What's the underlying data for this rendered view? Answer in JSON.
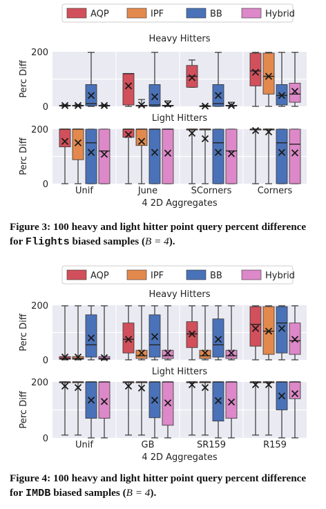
{
  "figures": [
    {
      "caption_prefix": "Figure 3: 100 heavy and light hitter point query percent difference for ",
      "caption_dataset": "Flights",
      "caption_suffix": " biased samples (",
      "caption_param": "B = 4",
      "caption_end": ").",
      "legend": [
        "AQP",
        "IPF",
        "BB",
        "Hybrid"
      ],
      "panel_titles": [
        "Heavy Hitters",
        "Light Hitters"
      ],
      "ylabel": "Perc Diff",
      "xlabel": "4 2D Aggregates",
      "categories": [
        "Unif",
        "June",
        "SCorners",
        "Corners"
      ]
    },
    {
      "caption_prefix": "Figure 4: 100 heavy and light hitter point query percent difference for ",
      "caption_dataset": "IMDB",
      "caption_suffix": " biased samples (",
      "caption_param": "B = 4",
      "caption_end": ").",
      "legend": [
        "AQP",
        "IPF",
        "BB",
        "Hybrid"
      ],
      "panel_titles": [
        "Heavy Hitters",
        "Light Hitters"
      ],
      "ylabel": "Perc Diff",
      "xlabel": "4 2D Aggregates",
      "categories": [
        "Unif",
        "GB",
        "SR159",
        "R159"
      ]
    }
  ],
  "colors": {
    "AQP": "#d1505b",
    "IPF": "#e3894d",
    "BB": "#4a72b8",
    "Hybrid": "#dd88c8",
    "panel_bg": "#eaeaf2",
    "grid": "#ffffff"
  },
  "chart_data": [
    {
      "type": "box",
      "figure": "Figure 3",
      "panel": "Heavy Hitters",
      "ylim": [
        0,
        200
      ],
      "yticks": [
        0,
        200
      ],
      "grid": true,
      "legend_position": "top",
      "categories": [
        "Unif",
        "June",
        "SCorners",
        "Corners"
      ],
      "series": [
        {
          "name": "AQP",
          "boxes": [
            {
              "min": 0,
              "q1": 1,
              "median": 2,
              "q3": 4,
              "max": 6,
              "mean": 3
            },
            {
              "min": 0,
              "q1": 5,
              "median": 120,
              "q3": 120,
              "max": 120,
              "mean": 75
            },
            {
              "min": 70,
              "q1": 70,
              "median": 110,
              "q3": 150,
              "max": 170,
              "mean": 105
            },
            {
              "min": 0,
              "q1": 75,
              "median": 130,
              "q3": 195,
              "max": 198,
              "mean": 125
            }
          ]
        },
        {
          "name": "IPF",
          "boxes": [
            {
              "min": 0,
              "q1": 1,
              "median": 2,
              "q3": 4,
              "max": 6,
              "mean": 3
            },
            {
              "min": 0,
              "q1": 1,
              "median": 2,
              "q3": 4,
              "max": 25,
              "mean": 5
            },
            {
              "min": 0,
              "q1": 0,
              "median": 1,
              "q3": 2,
              "max": 4,
              "mean": 1
            },
            {
              "min": 0,
              "q1": 45,
              "median": 110,
              "q3": 195,
              "max": 198,
              "mean": 110
            }
          ]
        },
        {
          "name": "BB",
          "boxes": [
            {
              "min": 0,
              "q1": 2,
              "median": 10,
              "q3": 80,
              "max": 198,
              "mean": 40
            },
            {
              "min": 0,
              "q1": 0,
              "median": 5,
              "q3": 80,
              "max": 198,
              "mean": 35
            },
            {
              "min": 0,
              "q1": 0,
              "median": 10,
              "q3": 80,
              "max": 198,
              "mean": 40
            },
            {
              "min": 0,
              "q1": 5,
              "median": 40,
              "q3": 80,
              "max": 198,
              "mean": 40
            }
          ]
        },
        {
          "name": "Hybrid",
          "boxes": [
            {
              "min": 0,
              "q1": 1,
              "median": 2,
              "q3": 4,
              "max": 6,
              "mean": 3
            },
            {
              "min": 0,
              "q1": 1,
              "median": 2,
              "q3": 4,
              "max": 20,
              "mean": 8
            },
            {
              "min": 0,
              "q1": 1,
              "median": 2,
              "q3": 4,
              "max": 15,
              "mean": 3
            },
            {
              "min": 0,
              "q1": 15,
              "median": 45,
              "q3": 85,
              "max": 198,
              "mean": 55
            }
          ]
        }
      ]
    },
    {
      "type": "box",
      "figure": "Figure 3",
      "panel": "Light Hitters",
      "ylim": [
        0,
        200
      ],
      "yticks": [
        0,
        200
      ],
      "grid": true,
      "xlabel": "4 2D Aggregates",
      "categories": [
        "Unif",
        "June",
        "SCorners",
        "Corners"
      ],
      "series": [
        {
          "name": "AQP",
          "boxes": [
            {
              "min": 0,
              "q1": 135,
              "median": 200,
              "q3": 200,
              "max": 200,
              "mean": 155
            },
            {
              "min": 0,
              "q1": 170,
              "median": 200,
              "q3": 200,
              "max": 200,
              "mean": 180
            },
            {
              "min": 0,
              "q1": 200,
              "median": 200,
              "q3": 200,
              "max": 200,
              "mean": 185
            },
            {
              "min": 0,
              "q1": 200,
              "median": 200,
              "q3": 200,
              "max": 200,
              "mean": 195
            }
          ]
        },
        {
          "name": "IPF",
          "boxes": [
            {
              "min": 0,
              "q1": 88,
              "median": 200,
              "q3": 200,
              "max": 200,
              "mean": 150
            },
            {
              "min": 0,
              "q1": 140,
              "median": 200,
              "q3": 200,
              "max": 200,
              "mean": 155
            },
            {
              "min": 0,
              "q1": 200,
              "median": 200,
              "q3": 200,
              "max": 200,
              "mean": 165
            },
            {
              "min": 0,
              "q1": 200,
              "median": 200,
              "q3": 200,
              "max": 200,
              "mean": 190
            }
          ]
        },
        {
          "name": "BB",
          "boxes": [
            {
              "min": 0,
              "q1": 0,
              "median": 150,
              "q3": 200,
              "max": 200,
              "mean": 115
            },
            {
              "min": 0,
              "q1": 0,
              "median": 200,
              "q3": 200,
              "max": 200,
              "mean": 115
            },
            {
              "min": 0,
              "q1": 0,
              "median": 150,
              "q3": 200,
              "max": 200,
              "mean": 115
            },
            {
              "min": 0,
              "q1": 0,
              "median": 150,
              "q3": 200,
              "max": 200,
              "mean": 115
            }
          ]
        },
        {
          "name": "Hybrid",
          "boxes": [
            {
              "min": 0,
              "q1": 0,
              "median": 120,
              "q3": 200,
              "max": 200,
              "mean": 108
            },
            {
              "min": 0,
              "q1": 0,
              "median": 200,
              "q3": 200,
              "max": 200,
              "mean": 112
            },
            {
              "min": 0,
              "q1": 0,
              "median": 120,
              "q3": 200,
              "max": 200,
              "mean": 110
            },
            {
              "min": 0,
              "q1": 0,
              "median": 145,
              "q3": 200,
              "max": 200,
              "mean": 113
            }
          ]
        }
      ]
    },
    {
      "type": "box",
      "figure": "Figure 4",
      "panel": "Heavy Hitters",
      "ylim": [
        0,
        200
      ],
      "yticks": [
        0,
        200
      ],
      "grid": true,
      "legend_position": "top",
      "categories": [
        "Unif",
        "GB",
        "SR159",
        "R159"
      ],
      "series": [
        {
          "name": "AQP",
          "boxes": [
            {
              "min": 0,
              "q1": 2,
              "median": 5,
              "q3": 12,
              "max": 198,
              "mean": 10
            },
            {
              "min": 0,
              "q1": 25,
              "median": 75,
              "q3": 135,
              "max": 198,
              "mean": 75
            },
            {
              "min": 0,
              "q1": 45,
              "median": 95,
              "q3": 140,
              "max": 198,
              "mean": 95
            },
            {
              "min": 0,
              "q1": 50,
              "median": 130,
              "q3": 195,
              "max": 198,
              "mean": 115
            }
          ]
        },
        {
          "name": "IPF",
          "boxes": [
            {
              "min": 0,
              "q1": 2,
              "median": 5,
              "q3": 12,
              "max": 198,
              "mean": 10
            },
            {
              "min": 0,
              "q1": 5,
              "median": 15,
              "q3": 35,
              "max": 198,
              "mean": 25
            },
            {
              "min": 0,
              "q1": 5,
              "median": 15,
              "q3": 35,
              "max": 198,
              "mean": 25
            },
            {
              "min": 0,
              "q1": 20,
              "median": 105,
              "q3": 195,
              "max": 198,
              "mean": 105
            }
          ]
        },
        {
          "name": "BB",
          "boxes": [
            {
              "min": 0,
              "q1": 10,
              "median": 55,
              "q3": 165,
              "max": 198,
              "mean": 80
            },
            {
              "min": 0,
              "q1": 10,
              "median": 55,
              "q3": 165,
              "max": 198,
              "mean": 85
            },
            {
              "min": 0,
              "q1": 10,
              "median": 55,
              "q3": 150,
              "max": 198,
              "mean": 75
            },
            {
              "min": 0,
              "q1": 25,
              "median": 135,
              "q3": 195,
              "max": 198,
              "mean": 115
            }
          ]
        },
        {
          "name": "Hybrid",
          "boxes": [
            {
              "min": 0,
              "q1": 2,
              "median": 5,
              "q3": 12,
              "max": 198,
              "mean": 8
            },
            {
              "min": 0,
              "q1": 5,
              "median": 15,
              "q3": 35,
              "max": 198,
              "mean": 25
            },
            {
              "min": 0,
              "q1": 5,
              "median": 15,
              "q3": 35,
              "max": 198,
              "mean": 25
            },
            {
              "min": 0,
              "q1": 20,
              "median": 70,
              "q3": 135,
              "max": 198,
              "mean": 75
            }
          ]
        }
      ]
    },
    {
      "type": "box",
      "figure": "Figure 4",
      "panel": "Light Hitters",
      "ylim": [
        0,
        200
      ],
      "yticks": [
        0,
        200
      ],
      "grid": true,
      "xlabel": "4 2D Aggregates",
      "categories": [
        "Unif",
        "GB",
        "SR159",
        "R159"
      ],
      "series": [
        {
          "name": "AQP",
          "boxes": [
            {
              "min": 10,
              "q1": 200,
              "median": 200,
              "q3": 200,
              "max": 200,
              "mean": 185
            },
            {
              "min": 10,
              "q1": 200,
              "median": 200,
              "q3": 200,
              "max": 200,
              "mean": 185
            },
            {
              "min": 10,
              "q1": 200,
              "median": 200,
              "q3": 200,
              "max": 200,
              "mean": 190
            },
            {
              "min": 10,
              "q1": 200,
              "median": 200,
              "q3": 200,
              "max": 200,
              "mean": 190
            }
          ]
        },
        {
          "name": "IPF",
          "boxes": [
            {
              "min": 10,
              "q1": 200,
              "median": 200,
              "q3": 200,
              "max": 200,
              "mean": 180
            },
            {
              "min": 10,
              "q1": 200,
              "median": 200,
              "q3": 200,
              "max": 200,
              "mean": 178
            },
            {
              "min": 10,
              "q1": 200,
              "median": 200,
              "q3": 200,
              "max": 200,
              "mean": 180
            },
            {
              "min": 10,
              "q1": 200,
              "median": 200,
              "q3": 200,
              "max": 200,
              "mean": 190
            }
          ]
        },
        {
          "name": "BB",
          "boxes": [
            {
              "min": 0,
              "q1": 70,
              "median": 200,
              "q3": 200,
              "max": 200,
              "mean": 135
            },
            {
              "min": 0,
              "q1": 72,
              "median": 200,
              "q3": 200,
              "max": 200,
              "mean": 135
            },
            {
              "min": 0,
              "q1": 60,
              "median": 200,
              "q3": 200,
              "max": 200,
              "mean": 133
            },
            {
              "min": 0,
              "q1": 100,
              "median": 200,
              "q3": 200,
              "max": 200,
              "mean": 150
            }
          ]
        },
        {
          "name": "Hybrid",
          "boxes": [
            {
              "min": 0,
              "q1": 70,
              "median": 200,
              "q3": 200,
              "max": 200,
              "mean": 130
            },
            {
              "min": 0,
              "q1": 45,
              "median": 200,
              "q3": 200,
              "max": 200,
              "mean": 125
            },
            {
              "min": 0,
              "q1": 70,
              "median": 200,
              "q3": 200,
              "max": 200,
              "mean": 128
            },
            {
              "min": 0,
              "q1": 140,
              "median": 200,
              "q3": 200,
              "max": 200,
              "mean": 158
            }
          ]
        }
      ]
    }
  ]
}
